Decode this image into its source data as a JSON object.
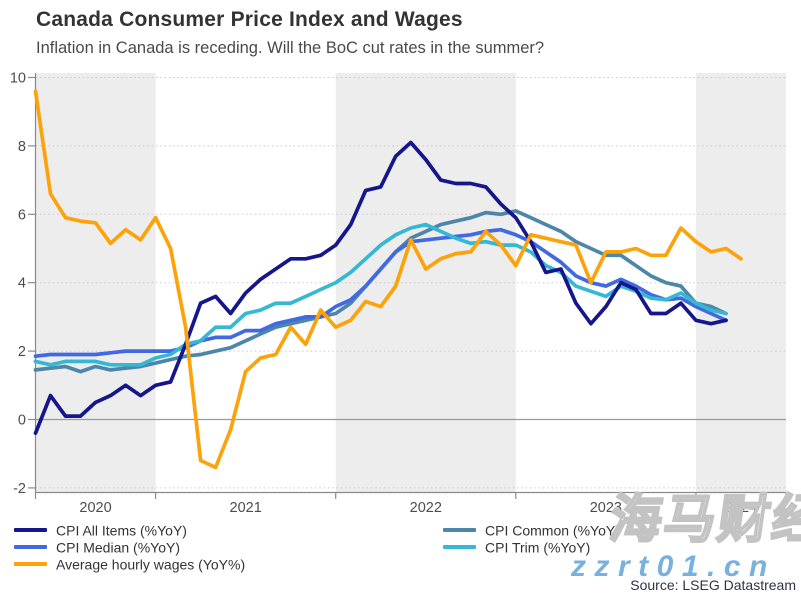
{
  "header": {
    "title": "Canada Consumer Price Index and Wages",
    "subtitle": "Inflation in Canada is receding. Will the BoC cut rates in the summer?"
  },
  "chart_data": {
    "type": "line",
    "frequency": "monthly",
    "start": "2020-05",
    "end": "2024-04",
    "title": "Canada Consumer Price Index and Wages",
    "ylabel": "",
    "xlabel": "",
    "ylim": [
      -2,
      10
    ],
    "y_ticks": [
      -2,
      0,
      2,
      4,
      6,
      8,
      10
    ],
    "x_tick_labels": [
      "2020",
      "2021",
      "2022",
      "2023",
      "2024"
    ],
    "x_year_boundaries_months": [
      0,
      8,
      20,
      32,
      44,
      50
    ],
    "grid": "dotted-horizontal",
    "zero_line": true,
    "legend_position": "bottom",
    "colors": {
      "shaded_band": "#ededed",
      "gridline": "#c9c9c9",
      "zero_line": "#9a9a9a",
      "axis": "#8a8a8a",
      "tick_label": "#4d4d4d"
    },
    "series": [
      {
        "name": "CPI Common (%YoY)",
        "color": "#4c86a8",
        "values": [
          1.45,
          1.5,
          1.55,
          1.4,
          1.55,
          1.45,
          1.5,
          1.55,
          1.65,
          1.75,
          1.85,
          1.9,
          2.0,
          2.1,
          2.3,
          2.5,
          2.7,
          2.8,
          2.9,
          3.0,
          3.1,
          3.4,
          3.9,
          4.4,
          4.9,
          5.3,
          5.5,
          5.7,
          5.8,
          5.9,
          6.05,
          6.0,
          6.1,
          5.9,
          5.7,
          5.5,
          5.2,
          5.0,
          4.8,
          4.8,
          4.5,
          4.2,
          4.0,
          3.9,
          3.4,
          3.3,
          3.1
        ]
      },
      {
        "name": "CPI Median (%YoY)",
        "color": "#4169e1",
        "values": [
          1.85,
          1.9,
          1.9,
          1.9,
          1.9,
          1.95,
          2.0,
          2.0,
          2.0,
          2.0,
          2.1,
          2.3,
          2.4,
          2.4,
          2.6,
          2.6,
          2.8,
          2.9,
          3.0,
          3.0,
          3.3,
          3.5,
          3.9,
          4.4,
          4.9,
          5.2,
          5.25,
          5.3,
          5.35,
          5.4,
          5.5,
          5.55,
          5.4,
          5.2,
          4.9,
          4.6,
          4.2,
          4.0,
          3.9,
          4.1,
          3.9,
          3.65,
          3.5,
          3.55,
          3.3,
          3.1,
          2.9
        ]
      },
      {
        "name": "CPI Trim (%YoY)",
        "color": "#35b8d3",
        "values": [
          1.7,
          1.6,
          1.7,
          1.7,
          1.7,
          1.6,
          1.6,
          1.6,
          1.8,
          1.9,
          2.2,
          2.3,
          2.7,
          2.7,
          3.1,
          3.2,
          3.4,
          3.4,
          3.6,
          3.8,
          4.0,
          4.3,
          4.7,
          5.1,
          5.4,
          5.6,
          5.7,
          5.5,
          5.3,
          5.15,
          5.2,
          5.1,
          5.1,
          4.9,
          4.5,
          4.3,
          3.9,
          3.75,
          3.6,
          3.9,
          3.75,
          3.55,
          3.5,
          3.7,
          3.4,
          3.2,
          3.1
        ]
      },
      {
        "name": "CPI All Items (%YoY)",
        "color": "#16168c",
        "values": [
          -0.4,
          0.7,
          0.1,
          0.1,
          0.5,
          0.7,
          1.0,
          0.7,
          1.0,
          1.1,
          2.2,
          3.4,
          3.6,
          3.1,
          3.7,
          4.1,
          4.4,
          4.7,
          4.7,
          4.8,
          5.1,
          5.7,
          6.7,
          6.8,
          7.7,
          8.1,
          7.6,
          7.0,
          6.9,
          6.9,
          6.8,
          6.3,
          5.9,
          5.2,
          4.3,
          4.4,
          3.4,
          2.8,
          3.3,
          4.0,
          3.8,
          3.1,
          3.1,
          3.4,
          2.9,
          2.8,
          2.9
        ]
      },
      {
        "name": "Average hourly wages (YoY%)",
        "color": "#fca20b",
        "values": [
          9.6,
          6.6,
          5.9,
          5.8,
          5.75,
          5.15,
          5.55,
          5.25,
          5.9,
          5.0,
          2.7,
          -1.2,
          -1.4,
          -0.3,
          1.4,
          1.8,
          1.9,
          2.7,
          2.2,
          3.2,
          2.7,
          2.9,
          3.45,
          3.3,
          3.9,
          5.25,
          4.4,
          4.7,
          4.85,
          4.9,
          5.5,
          5.1,
          4.5,
          5.4,
          5.3,
          5.2,
          5.1,
          4.0,
          4.9,
          4.9,
          5.0,
          4.8,
          4.8,
          5.6,
          5.2,
          4.9,
          5.0,
          4.7
        ]
      }
    ],
    "legend_columns": [
      [
        "CPI All Items (%YoY)",
        "CPI Median (%YoY)",
        "Average hourly wages (YoY%)"
      ],
      [
        "CPI Common (%YoY)",
        "CPI Trim (%YoY)"
      ]
    ]
  },
  "footer": {
    "source": "Source: LSEG Datastream"
  },
  "watermarks": {
    "brand_cjk": "海马财经",
    "site": "zzrt01.cn"
  }
}
